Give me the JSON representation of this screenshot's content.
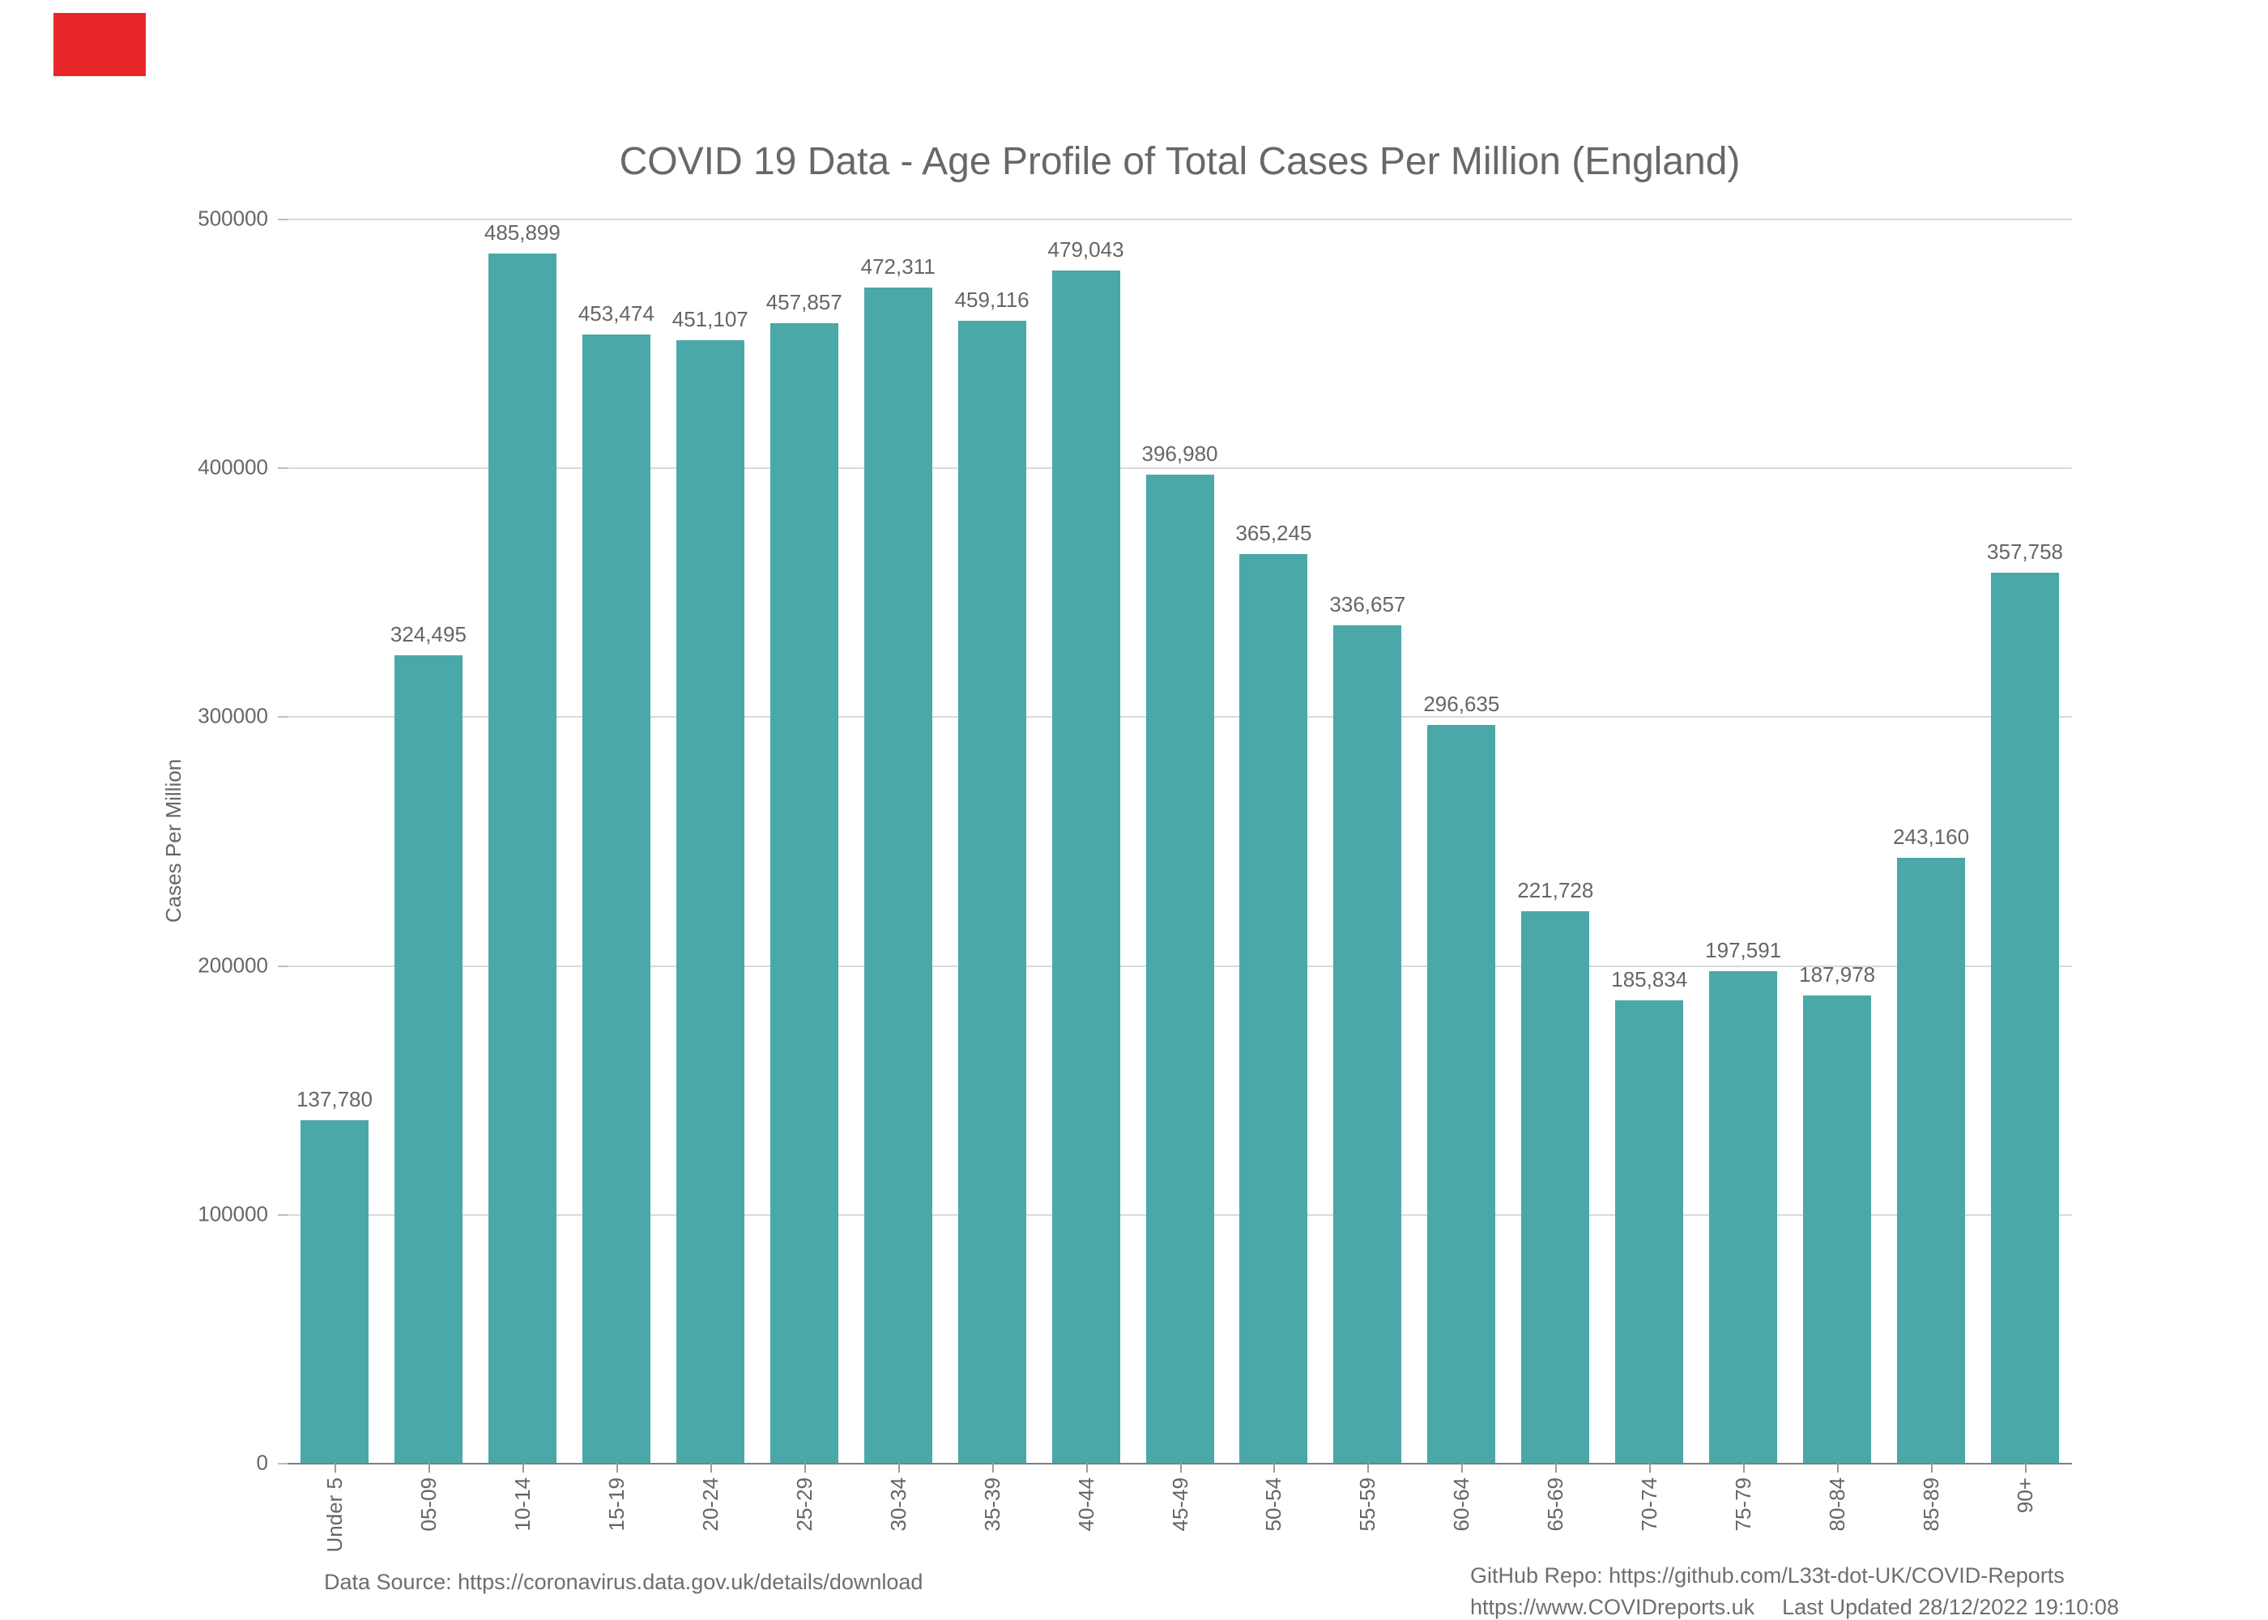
{
  "page": {
    "background": "#ffffff"
  },
  "annotations": {
    "recording_marker_color": "#e8262a"
  },
  "colors": {
    "bar": "#4aa8a8",
    "grid": "#d9d9d9",
    "axis": "#7f7f7f",
    "text": "#666666",
    "title_text": "#686868"
  },
  "chart_data": {
    "type": "bar",
    "title": "COVID 19 Data - Age Profile of Total Cases Per Million (England)",
    "xlabel": "",
    "ylabel": "Cases Per Million",
    "categories": [
      "Under 5",
      "05-09",
      "10-14",
      "15-19",
      "20-24",
      "25-29",
      "30-34",
      "35-39",
      "40-44",
      "45-49",
      "50-54",
      "55-59",
      "60-64",
      "65-69",
      "70-74",
      "75-79",
      "80-84",
      "85-89",
      "90+"
    ],
    "values": [
      137780,
      324495,
      485899,
      453474,
      451107,
      457857,
      472311,
      459116,
      479043,
      396980,
      365245,
      336657,
      296635,
      221728,
      185834,
      197591,
      187978,
      243160,
      357758
    ],
    "value_labels": [
      "137,780",
      "324,495",
      "485,899",
      "453,474",
      "451,107",
      "457,857",
      "472,311",
      "459,116",
      "479,043",
      "396,980",
      "365,245",
      "336,657",
      "296,635",
      "221,728",
      "185,834",
      "197,591",
      "187,978",
      "243,160",
      "357,758"
    ],
    "ylim": [
      0,
      500000
    ],
    "yticks": [
      0,
      100000,
      200000,
      300000,
      400000,
      500000
    ],
    "grid": "horizontal-only",
    "legend": "none",
    "bar_color": "#4aa8a8"
  },
  "footer": {
    "data_source": "Data Source: https://coronavirus.data.gov.uk/details/download",
    "github_repo": "GitHub Repo: https://github.com/L33t-dot-UK/COVID-Reports",
    "website": "https://www.COVIDreports.uk",
    "last_updated": "Last Updated 28/12/2022 19:10:08"
  }
}
